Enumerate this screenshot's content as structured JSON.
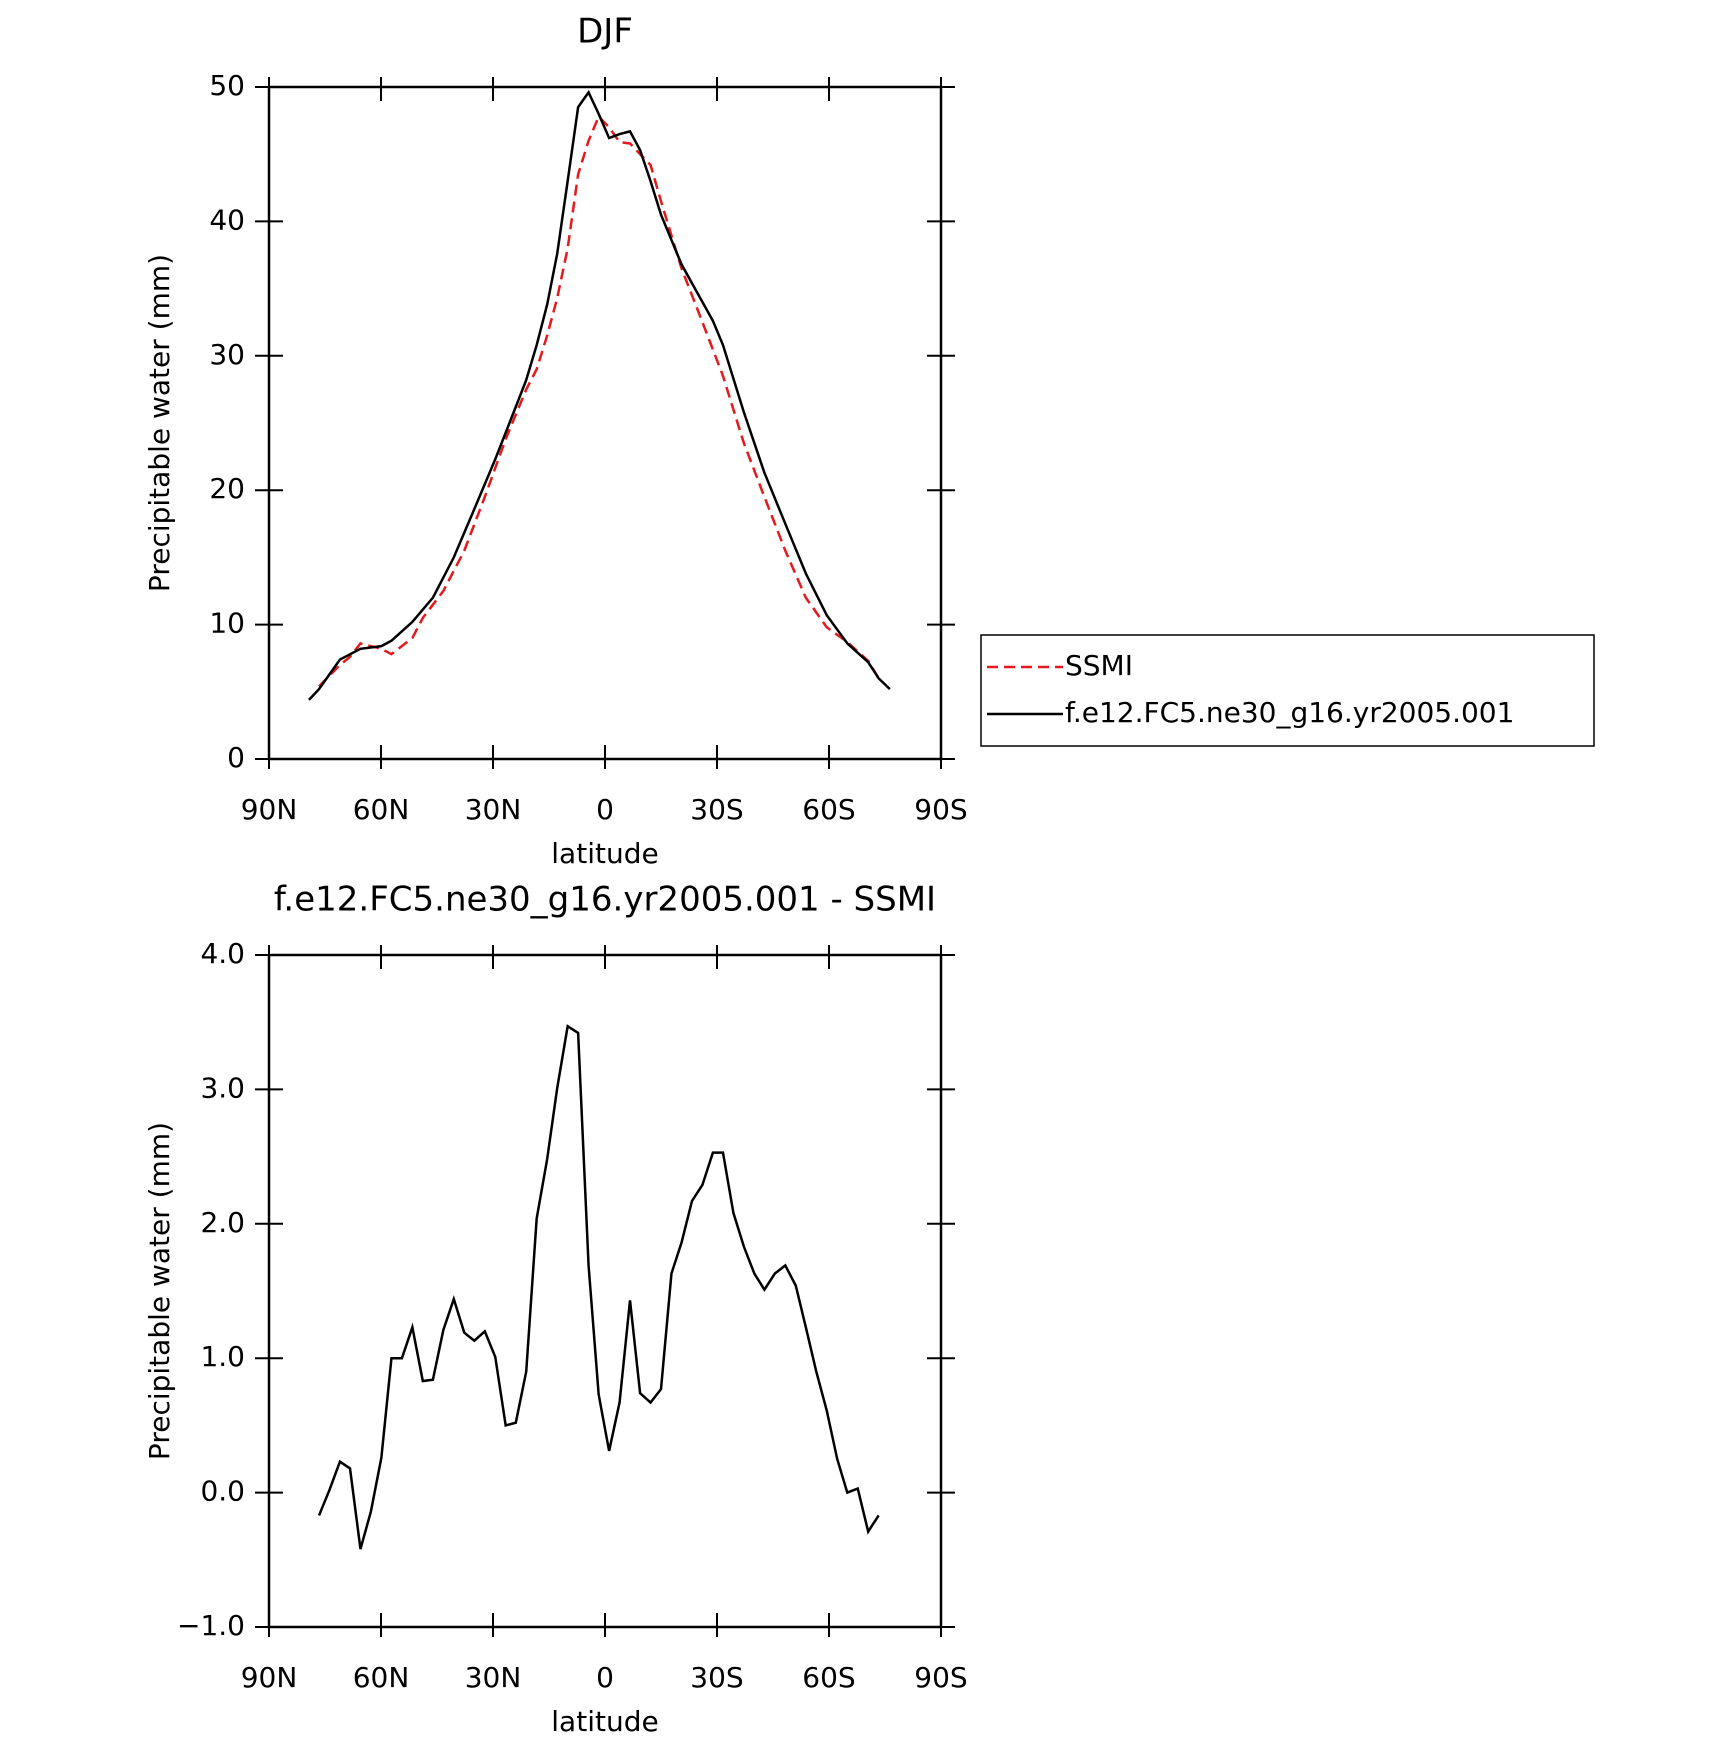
{
  "chart_data": [
    {
      "type": "line",
      "title": "DJF",
      "xlabel": "latitude",
      "ylabel": "Precipitable water (mm)",
      "xlim": [
        90,
        -90
      ],
      "xticks": [
        {
          "value": 90,
          "label": "90N"
        },
        {
          "value": 60,
          "label": "60N"
        },
        {
          "value": 30,
          "label": "30N"
        },
        0,
        {
          "value": -30,
          "label": "30S"
        },
        {
          "value": -60,
          "label": "60S"
        },
        {
          "value": -90,
          "label": "90S"
        }
      ],
      "ylim": [
        0,
        50
      ],
      "yticks": [
        0,
        10,
        20,
        30,
        40,
        50
      ],
      "legend": "outside-right",
      "series": [
        {
          "name": "SSMI",
          "color": "#e41a1c",
          "dashed": true,
          "x": [
            76.6,
            71.0,
            68.3,
            65.5,
            62.7,
            59.9,
            57.2,
            51.6,
            48.8,
            43.3,
            37.7,
            32.2,
            26.6,
            21.1,
            18.3,
            15.5,
            12.8,
            10.0,
            7.2,
            4.4,
            1.7,
            -1.1,
            -3.9,
            -6.7,
            -9.4,
            -12.2,
            -15.0,
            -20.5,
            -26.1,
            -31.6,
            -37.2,
            -42.7,
            -48.3,
            -53.8,
            -59.4,
            -64.9,
            -70.5,
            -73.3
          ],
          "values": [
            5.4,
            7.0,
            7.6,
            8.6,
            8.4,
            8.2,
            7.8,
            9.0,
            10.5,
            12.5,
            15.5,
            19.5,
            23.8,
            27.5,
            29.0,
            31.5,
            34.3,
            38.0,
            43.5,
            46.0,
            47.8,
            47.0,
            45.9,
            45.8,
            45.0,
            44.2,
            41.5,
            36.5,
            32.5,
            28.5,
            23.5,
            19.5,
            15.5,
            12.0,
            9.8,
            8.7,
            7.3,
            6.0
          ]
        },
        {
          "name": "f.e12.FC5.ne30_g16.yr2005.001",
          "color": "#000000",
          "dashed": false,
          "x": [
            79.3,
            76.6,
            71.0,
            65.5,
            59.9,
            57.2,
            51.6,
            46.1,
            40.5,
            35.0,
            29.4,
            23.9,
            21.1,
            18.3,
            15.5,
            12.8,
            10.0,
            7.2,
            4.4,
            1.7,
            -1.1,
            -3.9,
            -6.7,
            -9.4,
            -12.2,
            -15.0,
            -20.5,
            -26.1,
            -28.9,
            -31.6,
            -37.2,
            -42.7,
            -48.3,
            -53.8,
            -59.4,
            -64.9,
            -70.5,
            -73.3,
            -76.3
          ],
          "values": [
            4.4,
            5.2,
            7.4,
            8.2,
            8.4,
            8.8,
            10.2,
            12.0,
            15.0,
            18.6,
            22.3,
            26.2,
            28.2,
            30.8,
            33.8,
            37.6,
            43.0,
            48.5,
            49.6,
            48.0,
            46.2,
            46.5,
            46.7,
            45.3,
            43.0,
            40.5,
            36.8,
            34.0,
            32.6,
            30.8,
            25.8,
            21.3,
            17.5,
            13.8,
            10.7,
            8.6,
            7.2,
            6.0,
            5.2
          ]
        }
      ]
    },
    {
      "type": "line",
      "title": "f.e12.FC5.ne30_g16.yr2005.001 - SSMI",
      "xlabel": "latitude",
      "ylabel": "Precipitable water (mm)",
      "xlim": [
        90,
        -90
      ],
      "xticks": [
        {
          "value": 90,
          "label": "90N"
        },
        {
          "value": 60,
          "label": "60N"
        },
        {
          "value": 30,
          "label": "30N"
        },
        0,
        {
          "value": -30,
          "label": "30S"
        },
        {
          "value": -60,
          "label": "60S"
        },
        {
          "value": -90,
          "label": "90S"
        }
      ],
      "ylim": [
        -1,
        4
      ],
      "yticks": [
        {
          "value": -1,
          "label": "−1.0"
        },
        {
          "value": 0,
          "label": "0.0"
        },
        {
          "value": 1,
          "label": "1.0"
        },
        {
          "value": 2,
          "label": "2.0"
        },
        {
          "value": 3,
          "label": "3.0"
        },
        {
          "value": 4,
          "label": "4.0"
        }
      ],
      "series": [
        {
          "color": "#000000",
          "dashed": false,
          "x": [
            76.6,
            73.8,
            71.0,
            68.3,
            65.5,
            62.7,
            59.9,
            57.2,
            54.4,
            51.6,
            48.8,
            46.1,
            43.3,
            40.5,
            37.7,
            35.0,
            32.2,
            29.4,
            26.6,
            23.9,
            21.1,
            18.3,
            15.5,
            12.8,
            10.0,
            7.2,
            4.4,
            1.7,
            -1.1,
            -3.9,
            -6.7,
            -9.4,
            -12.2,
            -15.0,
            -17.8,
            -20.5,
            -23.3,
            -26.1,
            -28.9,
            -31.6,
            -34.4,
            -37.2,
            -40.0,
            -42.7,
            -45.5,
            -48.3,
            -51.1,
            -53.8,
            -56.6,
            -59.4,
            -62.2,
            -64.9,
            -67.7,
            -70.5,
            -73.3
          ],
          "values": [
            -0.17,
            0.02,
            0.23,
            0.18,
            -0.42,
            -0.14,
            0.26,
            1.0,
            1.0,
            1.23,
            0.83,
            0.84,
            1.21,
            1.44,
            1.19,
            1.13,
            1.2,
            1.01,
            0.5,
            0.52,
            0.9,
            2.04,
            2.48,
            3.01,
            3.47,
            3.42,
            1.69,
            0.73,
            0.31,
            0.67,
            1.43,
            0.74,
            0.67,
            0.77,
            1.63,
            1.86,
            2.17,
            2.29,
            2.53,
            2.53,
            2.08,
            1.83,
            1.63,
            1.51,
            1.63,
            1.69,
            1.54,
            1.23,
            0.9,
            0.61,
            0.25,
            0.0,
            0.03,
            -0.29,
            -0.17
          ]
        }
      ]
    }
  ]
}
